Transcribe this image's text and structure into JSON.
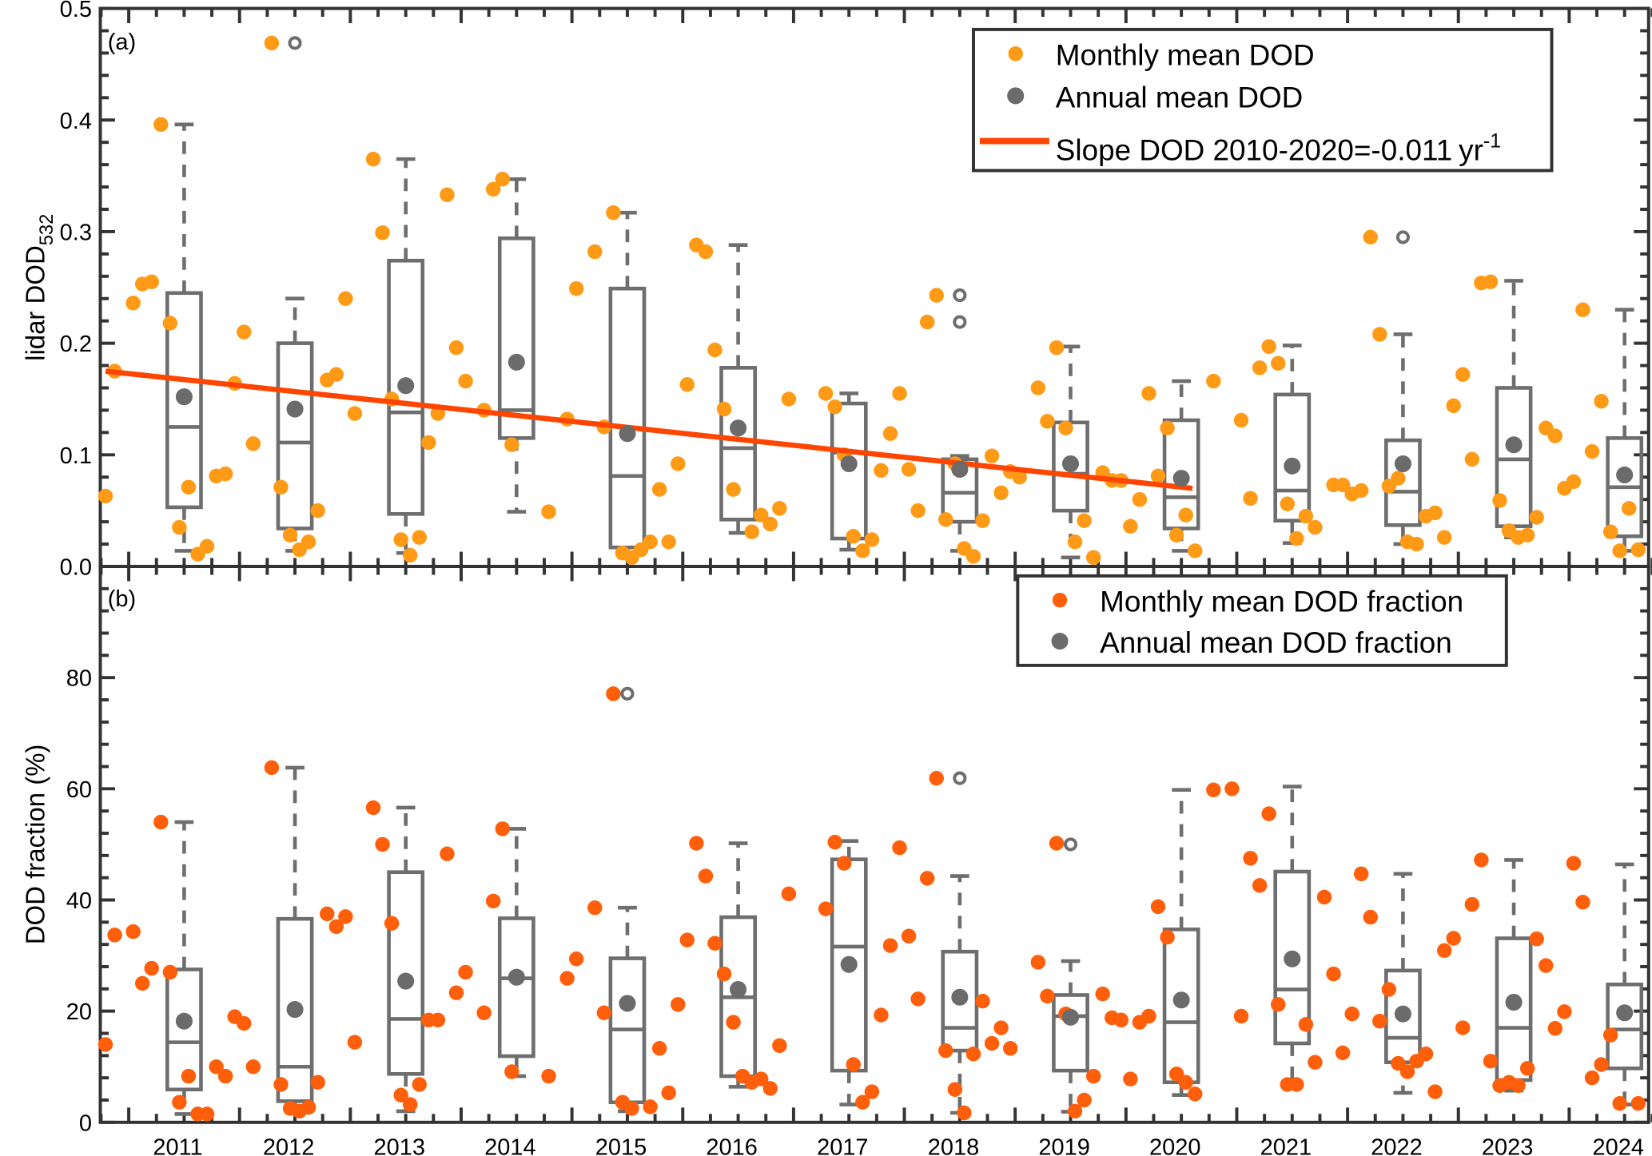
{
  "colors": {
    "monthly_a": "#FF9A17",
    "monthly_b": "#FF5F0A",
    "box": "#6E6E6E",
    "mean": "#6B6B6B",
    "trend": "#FF4500",
    "axis": "#333333"
  },
  "x_axis": {
    "xlim": [
      2010.75,
      2024.72
    ],
    "tick_years": [
      2011,
      2012,
      2013,
      2014,
      2015,
      2016,
      2017,
      2018,
      2019,
      2020,
      2021,
      2022,
      2023,
      2024
    ],
    "tick_labels": [
      "2011",
      "2012",
      "2013",
      "2014",
      "2015",
      "2016",
      "2017",
      "2018",
      "2019",
      "2020",
      "2021",
      "2022",
      "2023",
      "2024"
    ]
  },
  "chart_data": [
    {
      "panel": "a",
      "type": "scatter",
      "panel_label": "(a)",
      "ylabel": "lidar DOD",
      "ylabel_sub": "532",
      "ylim": [
        0,
        0.5
      ],
      "ytick_values": [
        0,
        0.1,
        0.2,
        0.3,
        0.4,
        0.5
      ],
      "ytick_labels": [
        "0.0",
        "0.1",
        "0.2",
        "0.3",
        "0.4",
        "0.5"
      ],
      "ytick_minor_step": 0.02,
      "legend": {
        "monthly": "Monthly mean DOD",
        "annual": "Annual mean DOD",
        "trend": "Slope DOD 2010-2020=-0.011",
        "trend_unit": "yr",
        "trend_unit_sup": "-1"
      },
      "trend": {
        "x": [
          2010.79,
          2020.6
        ],
        "y": [
          0.175,
          0.07
        ],
        "slope_per_year": -0.011
      },
      "monthly": {
        "start_year": 2010.79,
        "step": "1 month",
        "values": [
          0.063,
          0.175,
          null,
          0.236,
          0.253,
          0.255,
          0.396,
          0.218,
          0.035,
          0.071,
          0.011,
          0.018,
          0.081,
          0.083,
          0.164,
          0.21,
          0.11,
          null,
          0.469,
          0.071,
          0.028,
          0.015,
          0.022,
          0.05,
          0.167,
          0.172,
          0.24,
          0.137,
          null,
          0.365,
          0.299,
          0.15,
          0.024,
          0.01,
          0.026,
          0.111,
          0.137,
          0.333,
          0.196,
          0.166,
          null,
          0.14,
          0.338,
          0.347,
          0.109,
          null,
          null,
          null,
          0.049,
          null,
          0.132,
          0.249,
          null,
          0.282,
          0.125,
          0.317,
          0.012,
          0.008,
          0.015,
          0.022,
          0.069,
          0.022,
          0.092,
          0.163,
          0.288,
          0.282,
          0.194,
          0.141,
          0.069,
          null,
          0.031,
          0.046,
          0.038,
          0.052,
          0.15,
          null,
          null,
          null,
          0.155,
          0.143,
          0.1,
          0.027,
          0.014,
          0.024,
          0.086,
          0.119,
          0.155,
          0.087,
          0.05,
          0.219,
          0.243,
          0.042,
          0.092,
          0.016,
          0.009,
          0.041,
          0.099,
          0.066,
          0.085,
          0.08,
          null,
          0.16,
          0.13,
          0.196,
          0.124,
          0.022,
          0.041,
          0.008,
          0.084,
          0.077,
          0.077,
          0.036,
          0.06,
          0.155,
          0.081,
          0.124,
          0.028,
          0.046,
          0.014,
          null,
          0.166,
          null,
          null,
          0.131,
          0.061,
          0.178,
          0.197,
          0.182,
          0.056,
          0.025,
          0.045,
          0.035,
          null,
          0.073,
          0.073,
          0.065,
          0.068,
          0.295,
          0.208,
          0.072,
          0.079,
          0.022,
          0.02,
          0.045,
          0.048,
          0.026,
          0.144,
          0.172,
          0.096,
          0.254,
          0.255,
          0.059,
          0.032,
          0.026,
          0.028,
          0.044,
          0.124,
          0.117,
          0.07,
          0.076,
          0.23,
          0.103,
          0.148,
          0.031,
          0.014,
          0.052,
          0.015
        ]
      },
      "boxes": [
        {
          "year": 2011,
          "low": 0.014,
          "q1": 0.053,
          "median": 0.125,
          "q3": 0.245,
          "high": 0.396,
          "mean": 0.152,
          "outliers": []
        },
        {
          "year": 2012,
          "low": 0.014,
          "q1": 0.034,
          "median": 0.111,
          "q3": 0.2,
          "high": 0.24,
          "mean": 0.141,
          "outliers": [
            0.469
          ]
        },
        {
          "year": 2013,
          "low": 0.012,
          "q1": 0.047,
          "median": 0.138,
          "q3": 0.274,
          "high": 0.365,
          "mean": 0.162,
          "outliers": []
        },
        {
          "year": 2014,
          "low": 0.049,
          "q1": 0.115,
          "median": 0.14,
          "q3": 0.294,
          "high": 0.347,
          "mean": 0.183,
          "outliers": []
        },
        {
          "year": 2015,
          "low": 0.008,
          "q1": 0.017,
          "median": 0.081,
          "q3": 0.249,
          "high": 0.317,
          "mean": 0.119,
          "outliers": []
        },
        {
          "year": 2016,
          "low": 0.03,
          "q1": 0.042,
          "median": 0.106,
          "q3": 0.178,
          "high": 0.288,
          "mean": 0.124,
          "outliers": []
        },
        {
          "year": 2017,
          "low": 0.015,
          "q1": 0.025,
          "median": 0.102,
          "q3": 0.146,
          "high": 0.155,
          "mean": 0.092,
          "outliers": []
        },
        {
          "year": 2018,
          "low": 0.014,
          "q1": 0.04,
          "median": 0.066,
          "q3": 0.096,
          "high": 0.099,
          "mean": 0.087,
          "outliers": [
            0.243,
            0.219
          ]
        },
        {
          "year": 2019,
          "low": 0.008,
          "q1": 0.05,
          "median": 0.083,
          "q3": 0.129,
          "high": 0.197,
          "mean": 0.092,
          "outliers": []
        },
        {
          "year": 2020,
          "low": 0.014,
          "q1": 0.034,
          "median": 0.062,
          "q3": 0.131,
          "high": 0.166,
          "mean": 0.079,
          "outliers": []
        },
        {
          "year": 2021,
          "low": 0.021,
          "q1": 0.041,
          "median": 0.068,
          "q3": 0.154,
          "high": 0.198,
          "mean": 0.09,
          "outliers": []
        },
        {
          "year": 2022,
          "low": 0.02,
          "q1": 0.037,
          "median": 0.067,
          "q3": 0.113,
          "high": 0.208,
          "mean": 0.092,
          "outliers": [
            0.295
          ]
        },
        {
          "year": 2023,
          "low": 0.026,
          "q1": 0.036,
          "median": 0.096,
          "q3": 0.16,
          "high": 0.256,
          "mean": 0.109,
          "outliers": []
        },
        {
          "year": 2024,
          "low": 0.014,
          "q1": 0.027,
          "median": 0.071,
          "q3": 0.115,
          "high": 0.23,
          "mean": 0.082,
          "outliers": []
        }
      ]
    },
    {
      "panel": "b",
      "type": "scatter",
      "panel_label": "(b)",
      "ylabel": "DOD fraction (%)",
      "ylim": [
        0,
        100
      ],
      "ytick_values": [
        0,
        20,
        40,
        60,
        80
      ],
      "ytick_labels": [
        "0",
        "20",
        "40",
        "60",
        "80"
      ],
      "ytick_minor_step": 4,
      "legend": {
        "monthly": "Monthly mean DOD fraction",
        "annual": "Annual mean DOD fraction"
      },
      "monthly": {
        "start_year": 2010.79,
        "step": "1 month",
        "values": [
          14,
          33.7,
          null,
          34.3,
          25,
          27.7,
          54,
          27,
          3.6,
          8.3,
          1.5,
          1.5,
          10,
          8.3,
          19,
          17.8,
          10,
          null,
          63.8,
          6.8,
          2.5,
          2,
          2.7,
          7.2,
          37.5,
          35.2,
          37,
          14.4,
          null,
          56.6,
          50,
          35.8,
          4.9,
          3.2,
          6.8,
          18.4,
          18.4,
          48.3,
          23.3,
          27,
          null,
          19.7,
          39.8,
          52.8,
          9.1,
          null,
          null,
          null,
          8.3,
          null,
          25.9,
          29.4,
          null,
          38.6,
          19.7,
          77.1,
          3.6,
          2.5,
          null,
          2.8,
          13.3,
          5.3,
          21.2,
          32.8,
          50.2,
          44.3,
          32.2,
          26.7,
          18,
          8.3,
          7.2,
          7.8,
          6.1,
          13.8,
          41.1,
          null,
          null,
          null,
          38.4,
          50.4,
          46.6,
          10.4,
          3.6,
          5.5,
          19.3,
          31.8,
          49.4,
          33.5,
          22.2,
          43.9,
          61.9,
          12.9,
          5.9,
          1.7,
          12.3,
          21.8,
          14.2,
          17,
          13.3,
          null,
          null,
          28.8,
          22.7,
          50.2,
          19.5,
          2,
          4,
          8.3,
          23.1,
          18.8,
          18.4,
          7.8,
          18,
          19.1,
          38.8,
          33.3,
          8.7,
          7.2,
          5.1,
          null,
          59.8,
          null,
          60,
          19.1,
          47.5,
          42.6,
          55.5,
          21.2,
          6.8,
          6.8,
          17.6,
          10.8,
          40.5,
          26.7,
          12.5,
          19.5,
          44.7,
          36.9,
          18.2,
          23.9,
          10.6,
          9.1,
          11,
          12.3,
          5.5,
          30.9,
          33.1,
          17,
          39.2,
          47.2,
          11,
          6.6,
          7.2,
          6.6,
          9.7,
          33,
          28.2,
          16.9,
          19.9,
          46.6,
          39.6,
          8,
          10.4,
          15.7,
          3.4,
          null,
          3.4
        ]
      },
      "boxes": [
        {
          "year": 2011,
          "low": 1.5,
          "q1": 5.9,
          "median": 14.4,
          "q3": 27.5,
          "high": 54,
          "mean": 18.2,
          "outliers": []
        },
        {
          "year": 2012,
          "low": 1.9,
          "q1": 3.8,
          "median": 10,
          "q3": 36.6,
          "high": 63.8,
          "mean": 20.3,
          "outliers": []
        },
        {
          "year": 2013,
          "low": 2,
          "q1": 8.7,
          "median": 18.6,
          "q3": 45,
          "high": 56.6,
          "mean": 25.4,
          "outliers": []
        },
        {
          "year": 2014,
          "low": 8.3,
          "q1": 11.9,
          "median": 25.9,
          "q3": 36.7,
          "high": 52.8,
          "mean": 26.1,
          "outliers": []
        },
        {
          "year": 2015,
          "low": 2,
          "q1": 3.6,
          "median": 16.7,
          "q3": 29.5,
          "high": 38.6,
          "mean": 21.4,
          "outliers": [
            77.1
          ]
        },
        {
          "year": 2016,
          "low": 6.4,
          "q1": 8.3,
          "median": 22.5,
          "q3": 36.9,
          "high": 50.2,
          "mean": 23.9,
          "outliers": []
        },
        {
          "year": 2017,
          "low": 3.2,
          "q1": 9.3,
          "median": 31.6,
          "q3": 47.3,
          "high": 50.6,
          "mean": 28.4,
          "outliers": []
        },
        {
          "year": 2018,
          "low": 1.7,
          "q1": 12.9,
          "median": 17,
          "q3": 30.7,
          "high": 44.3,
          "mean": 22.5,
          "outliers": [
            61.9
          ]
        },
        {
          "year": 2019,
          "low": 1.9,
          "q1": 9.3,
          "median": 19.1,
          "q3": 22.9,
          "high": 29,
          "mean": 18.9,
          "outliers": [
            50
          ]
        },
        {
          "year": 2020,
          "low": 4.9,
          "q1": 7.2,
          "median": 18,
          "q3": 34.7,
          "high": 59.8,
          "mean": 22,
          "outliers": []
        },
        {
          "year": 2021,
          "low": 6.6,
          "q1": 14.2,
          "median": 23.9,
          "q3": 45.1,
          "high": 60.4,
          "mean": 29.4,
          "outliers": []
        },
        {
          "year": 2022,
          "low": 5.3,
          "q1": 10.8,
          "median": 15.2,
          "q3": 27.3,
          "high": 44.7,
          "mean": 19.5,
          "outliers": []
        },
        {
          "year": 2023,
          "low": 5.7,
          "q1": 7.6,
          "median": 17,
          "q3": 33.1,
          "high": 47.2,
          "mean": 21.6,
          "outliers": []
        },
        {
          "year": 2024,
          "low": 3.2,
          "q1": 9.7,
          "median": 16.7,
          "q3": 24.8,
          "high": 46.4,
          "mean": 19.7,
          "outliers": []
        }
      ]
    }
  ]
}
